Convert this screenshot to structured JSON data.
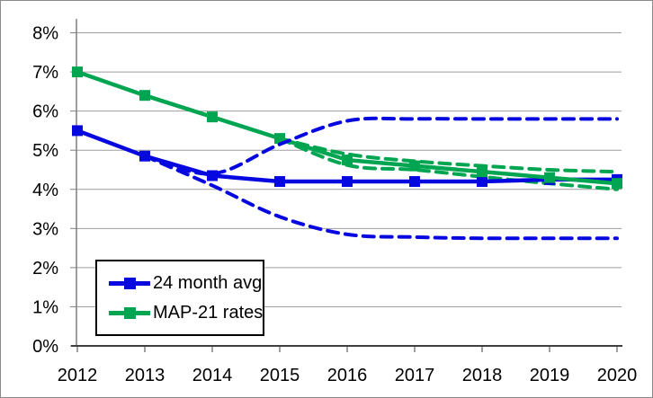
{
  "figure": {
    "background": "#FFFFFF",
    "border_color": "#8A8A8A"
  },
  "chart_data": {
    "type": "line",
    "title": "",
    "xlabel": "",
    "ylabel": "",
    "x": [
      2012,
      2013,
      2014,
      2015,
      2016,
      2017,
      2018,
      2019,
      2020
    ],
    "xtick_labels": [
      "2012",
      "2013",
      "2014",
      "2015",
      "2016",
      "2017",
      "2018",
      "2019",
      "2020"
    ],
    "ytick_labels": [
      "0%",
      "1%",
      "2%",
      "3%",
      "4%",
      "5%",
      "6%",
      "7%",
      "8%"
    ],
    "ylim": [
      0,
      8
    ],
    "grid": "horizontal",
    "grid_color": "#9E9E9E",
    "axis_color": "#404040",
    "legend_position": "bottom-left",
    "series": [
      {
        "name": "24 month avg",
        "color": "#0707DF",
        "style": "solid",
        "marker": "square",
        "in_legend": true,
        "values": [
          5.5,
          4.85,
          4.35,
          4.2,
          4.2,
          4.2,
          4.2,
          4.25,
          4.25
        ]
      },
      {
        "name": "MAP-21 rates",
        "color": "#00A551",
        "style": "solid",
        "marker": "square",
        "in_legend": true,
        "values": [
          7.0,
          6.4,
          5.85,
          5.3,
          4.75,
          4.6,
          4.45,
          4.3,
          4.15
        ]
      },
      {
        "name": "24-month-avg-upper-band-dashed",
        "color": "#0707DF",
        "style": "dashed",
        "marker": "none",
        "in_legend": false,
        "values": [
          null,
          4.85,
          4.4,
          5.15,
          5.75,
          5.8,
          5.8,
          5.8,
          5.8
        ]
      },
      {
        "name": "24-month-avg-lower-band-dashed",
        "color": "#0707DF",
        "style": "dashed",
        "marker": "none",
        "in_legend": false,
        "values": [
          null,
          4.85,
          4.1,
          3.3,
          2.85,
          2.78,
          2.75,
          2.75,
          2.75
        ]
      },
      {
        "name": "map-21-upper-band-dashed",
        "color": "#00A551",
        "style": "dashed",
        "marker": "none",
        "in_legend": false,
        "values": [
          null,
          null,
          null,
          5.3,
          4.9,
          4.72,
          4.6,
          4.5,
          4.45
        ]
      },
      {
        "name": "map-21-lower-band-dashed",
        "color": "#00A551",
        "style": "dashed",
        "marker": "none",
        "in_legend": false,
        "values": [
          null,
          null,
          null,
          5.3,
          4.62,
          4.5,
          4.32,
          4.15,
          4.0
        ]
      }
    ]
  }
}
